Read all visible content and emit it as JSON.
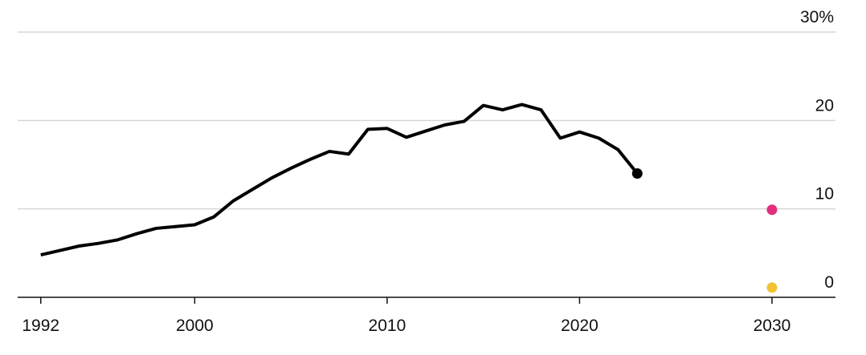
{
  "chart_data": {
    "type": "line",
    "xlim": [
      1990.8,
      2033.3
    ],
    "xticks": [
      1992,
      2000,
      2010,
      2020,
      2030
    ],
    "ylim": [
      0,
      30
    ],
    "yticks": [
      0,
      10,
      20,
      {
        "value": 30,
        "label": "30%"
      }
    ],
    "grid": true,
    "series": [
      {
        "color": "#000000",
        "end_marker": true,
        "x": [
          1992,
          1993,
          1994,
          1995,
          1996,
          1997,
          1998,
          1999,
          2000,
          2001,
          2002,
          2003,
          2004,
          2005,
          2006,
          2007,
          2008,
          2009,
          2010,
          2011,
          2012,
          2013,
          2014,
          2015,
          2016,
          2017,
          2018,
          2019,
          2020,
          2021,
          2022,
          2023
        ],
        "values": [
          4.8,
          5.3,
          5.8,
          6.1,
          6.5,
          7.2,
          7.8,
          8.0,
          8.2,
          9.1,
          10.9,
          12.2,
          13.5,
          14.6,
          15.6,
          16.5,
          16.2,
          19.0,
          19.1,
          18.1,
          18.8,
          19.5,
          19.9,
          21.7,
          21.2,
          21.8,
          21.2,
          18.0,
          18.7,
          18.0,
          16.7,
          14.0
        ]
      },
      {
        "color": "#e0307f",
        "x": [
          2030
        ],
        "values": [
          9.9
        ]
      },
      {
        "color": "#f2c233",
        "x": [
          2030
        ],
        "values": [
          1.1
        ]
      }
    ]
  }
}
